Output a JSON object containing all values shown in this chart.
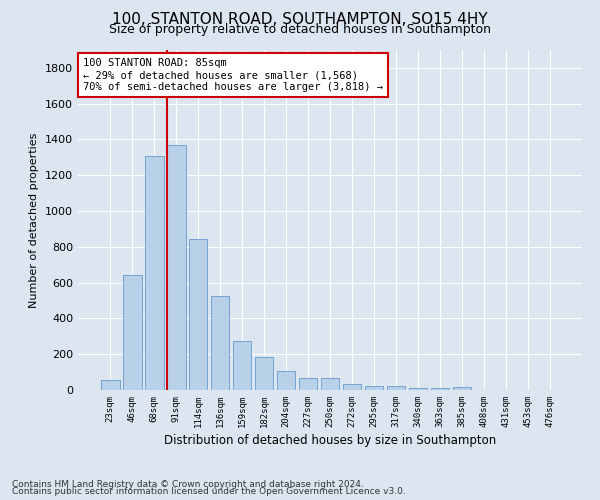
{
  "title": "100, STANTON ROAD, SOUTHAMPTON, SO15 4HY",
  "subtitle": "Size of property relative to detached houses in Southampton",
  "xlabel": "Distribution of detached houses by size in Southampton",
  "ylabel": "Number of detached properties",
  "footnote1": "Contains HM Land Registry data © Crown copyright and database right 2024.",
  "footnote2": "Contains public sector information licensed under the Open Government Licence v3.0.",
  "categories": [
    "23sqm",
    "46sqm",
    "68sqm",
    "91sqm",
    "114sqm",
    "136sqm",
    "159sqm",
    "182sqm",
    "204sqm",
    "227sqm",
    "250sqm",
    "272sqm",
    "295sqm",
    "317sqm",
    "340sqm",
    "363sqm",
    "385sqm",
    "408sqm",
    "431sqm",
    "453sqm",
    "476sqm"
  ],
  "values": [
    55,
    640,
    1305,
    1370,
    845,
    525,
    275,
    185,
    108,
    65,
    65,
    35,
    25,
    20,
    10,
    10,
    15,
    0,
    0,
    0,
    0
  ],
  "bar_color": "#b8d0e8",
  "bar_edge_color": "#6699cc",
  "vline_color": "#cc0000",
  "annotation_text": "100 STANTON ROAD: 85sqm\n← 29% of detached houses are smaller (1,568)\n70% of semi-detached houses are larger (3,818) →",
  "annotation_box_facecolor": "#ffffff",
  "annotation_box_edgecolor": "#cc0000",
  "ylim": [
    0,
    1900
  ],
  "yticks": [
    0,
    200,
    400,
    600,
    800,
    1000,
    1200,
    1400,
    1600,
    1800
  ],
  "background_color": "#dce6f0",
  "plot_background_color": "#dce6f0",
  "title_fontsize": 11,
  "subtitle_fontsize": 9,
  "annotation_fontsize": 7.5,
  "grid_color": "#ffffff",
  "footnote_fontsize": 6.5
}
